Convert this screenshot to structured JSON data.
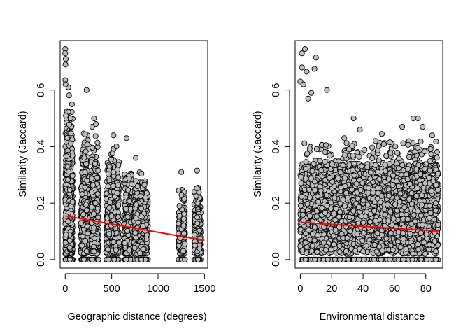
{
  "chart_data": [
    {
      "type": "scatter",
      "title": "",
      "xlabel": "Geographic distance (degrees)",
      "ylabel": "Similarity (Jaccard)",
      "xlim": [
        -55,
        1535
      ],
      "ylim": [
        -0.03,
        0.775
      ],
      "xticks": [
        0,
        500,
        1000,
        1500
      ],
      "xtick_labels": [
        "0",
        "500",
        "1000",
        "1500"
      ],
      "yticks": [
        0.0,
        0.2,
        0.4,
        0.6
      ],
      "ytick_labels": [
        "0.0",
        "0.2",
        "0.4",
        "0.6"
      ],
      "grid": false,
      "legend": "none",
      "point_fill": "#bebebe",
      "point_stroke": "#000000",
      "fit_color": "#ff0000",
      "clusters": [
        {
          "x_min": 0,
          "x_max": 80,
          "y_max": 0.6,
          "n": 620
        },
        {
          "x_min": 170,
          "x_max": 260,
          "y_max": 0.46,
          "n": 380
        },
        {
          "x_min": 280,
          "x_max": 360,
          "y_max": 0.42,
          "n": 360
        },
        {
          "x_min": 440,
          "x_max": 580,
          "y_max": 0.4,
          "n": 460
        },
        {
          "x_min": 640,
          "x_max": 720,
          "y_max": 0.3,
          "n": 330
        },
        {
          "x_min": 740,
          "x_max": 890,
          "y_max": 0.3,
          "n": 420
        },
        {
          "x_min": 1220,
          "x_max": 1290,
          "y_max": 0.25,
          "n": 240
        },
        {
          "x_min": 1390,
          "x_max": 1460,
          "y_max": 0.25,
          "n": 240
        }
      ],
      "points": [
        {
          "x": 0,
          "y": 0.745
        },
        {
          "x": 0,
          "y": 0.73
        },
        {
          "x": 5,
          "y": 0.71
        },
        {
          "x": 2,
          "y": 0.69
        },
        {
          "x": 0,
          "y": 0.635
        },
        {
          "x": 3,
          "y": 0.62
        },
        {
          "x": 230,
          "y": 0.6
        },
        {
          "x": 310,
          "y": 0.5
        },
        {
          "x": 290,
          "y": 0.47
        },
        {
          "x": 330,
          "y": 0.48
        },
        {
          "x": 660,
          "y": 0.43
        },
        {
          "x": 520,
          "y": 0.44
        },
        {
          "x": 760,
          "y": 0.36
        },
        {
          "x": 1250,
          "y": 0.31
        },
        {
          "x": 1420,
          "y": 0.315
        }
      ],
      "fit": {
        "x": [
          0,
          1500
        ],
        "y": [
          0.155,
          0.068
        ]
      }
    },
    {
      "type": "scatter",
      "title": "",
      "xlabel": "Environmental distance",
      "ylabel": "Similarity (Jaccard)",
      "xlim": [
        -3.3,
        90.8
      ],
      "ylim": [
        -0.03,
        0.775
      ],
      "xticks": [
        0,
        20,
        40,
        60,
        80
      ],
      "xtick_labels": [
        "0",
        "20",
        "40",
        "60",
        "80"
      ],
      "yticks": [
        0.0,
        0.2,
        0.4,
        0.6
      ],
      "ytick_labels": [
        "0.0",
        "0.2",
        "0.4",
        "0.6"
      ],
      "grid": false,
      "legend": "none",
      "point_fill": "#bebebe",
      "point_stroke": "#000000",
      "fit_color": "#ff0000",
      "points": [
        {
          "x": 1,
          "y": 0.73
        },
        {
          "x": 3,
          "y": 0.745
        },
        {
          "x": 10,
          "y": 0.715
        },
        {
          "x": 1,
          "y": 0.68
        },
        {
          "x": 4,
          "y": 0.665
        },
        {
          "x": 9,
          "y": 0.675
        },
        {
          "x": 0,
          "y": 0.63
        },
        {
          "x": 2,
          "y": 0.62
        },
        {
          "x": 17,
          "y": 0.6
        },
        {
          "x": 7,
          "y": 0.59
        },
        {
          "x": 5,
          "y": 0.57
        },
        {
          "x": 34,
          "y": 0.5
        },
        {
          "x": 72,
          "y": 0.5
        },
        {
          "x": 75,
          "y": 0.5
        },
        {
          "x": 65,
          "y": 0.47
        },
        {
          "x": 78,
          "y": 0.47
        },
        {
          "x": 52,
          "y": 0.445
        },
        {
          "x": 38,
          "y": 0.46
        },
        {
          "x": 84,
          "y": 0.44
        },
        {
          "x": 28,
          "y": 0.43
        },
        {
          "x": 48,
          "y": 0.42
        }
      ],
      "fit": {
        "x": [
          0,
          88
        ],
        "y": [
          0.132,
          0.101
        ]
      }
    }
  ]
}
